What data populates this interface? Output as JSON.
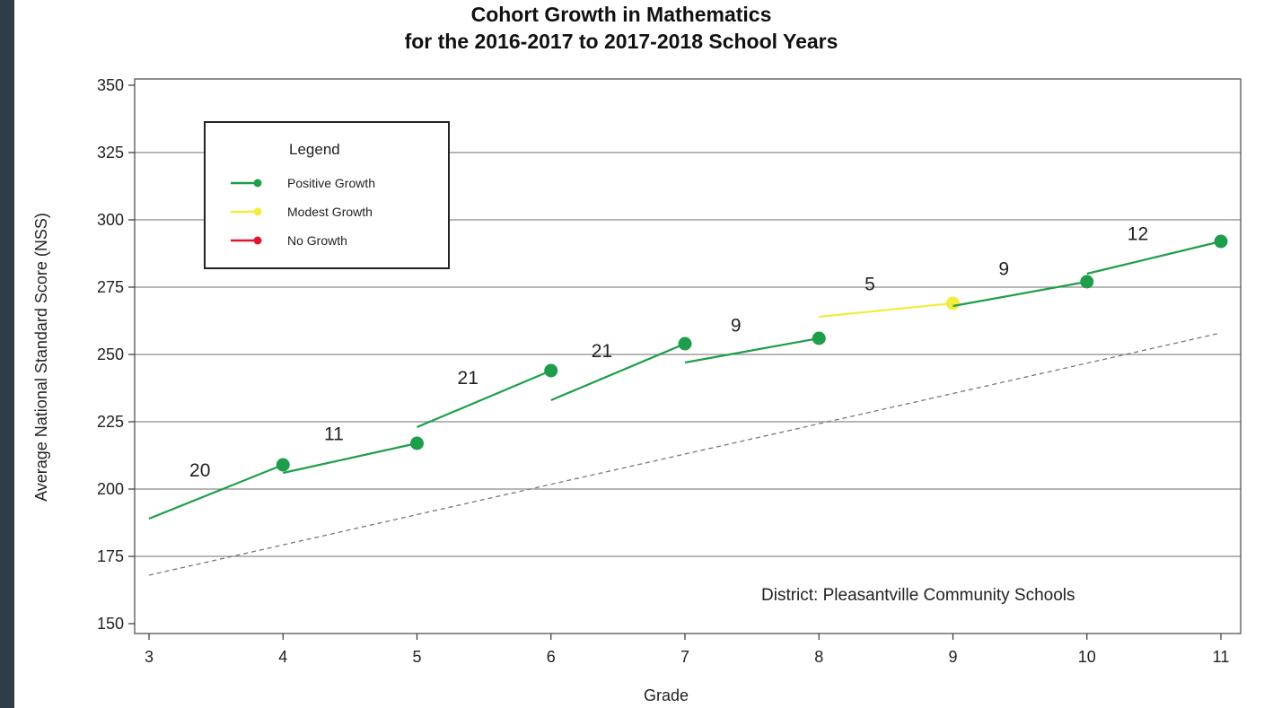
{
  "chart_data": {
    "type": "line",
    "title": "Cohort Growth in Mathematics",
    "subtitle": "for the 2016-2017 to 2017-2018 School Years",
    "xlabel": "Grade",
    "ylabel": "Average National Standard Score (NSS)",
    "xlim": [
      3,
      11
    ],
    "ylim": [
      150,
      350
    ],
    "x_ticks": [
      "3",
      "4",
      "5",
      "6",
      "7",
      "8",
      "9",
      "10",
      "11"
    ],
    "y_ticks": [
      "150",
      "175",
      "200",
      "225",
      "250",
      "275",
      "300",
      "325",
      "350"
    ],
    "grid": "horizontal",
    "legend": {
      "title": "Legend",
      "placement": "top-left",
      "items": [
        {
          "label": "Positive Growth",
          "color": "#1e9e4a"
        },
        {
          "label": "Modest Growth",
          "color": "#f2ec3c"
        },
        {
          "label": "No Growth",
          "color": "#e0172e"
        }
      ]
    },
    "segments": [
      {
        "x": [
          3,
          4
        ],
        "y": [
          189,
          209
        ],
        "growth": "20",
        "category": "Positive Growth"
      },
      {
        "x": [
          4,
          5
        ],
        "y": [
          206,
          217
        ],
        "growth": "11",
        "category": "Positive Growth"
      },
      {
        "x": [
          5,
          6
        ],
        "y": [
          223,
          244
        ],
        "growth": "21",
        "category": "Positive Growth"
      },
      {
        "x": [
          6,
          7
        ],
        "y": [
          233,
          254
        ],
        "growth": "21",
        "category": "Positive Growth"
      },
      {
        "x": [
          7,
          8
        ],
        "y": [
          247,
          256
        ],
        "growth": "9",
        "category": "Positive Growth"
      },
      {
        "x": [
          8,
          9
        ],
        "y": [
          264,
          269
        ],
        "growth": "5",
        "category": "Modest Growth"
      },
      {
        "x": [
          9,
          10
        ],
        "y": [
          268,
          277
        ],
        "growth": "9",
        "category": "Positive Growth"
      },
      {
        "x": [
          10,
          11
        ],
        "y": [
          280,
          292
        ],
        "growth": "12",
        "category": "Positive Growth"
      }
    ],
    "reference_line": {
      "x": [
        3,
        11
      ],
      "y": [
        168,
        258
      ],
      "style": "dashed"
    },
    "annotation": "District: Pleasantville Community Schools"
  }
}
